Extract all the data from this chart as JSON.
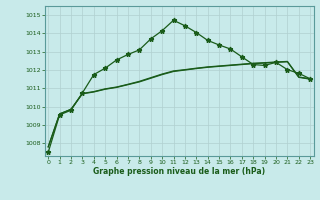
{
  "title": "Graphe pression niveau de la mer (hPa)",
  "bg_color": "#c8eaea",
  "grid_color": "#b0d0d0",
  "line_color": "#1a5c1a",
  "x_ticks": [
    0,
    1,
    2,
    3,
    4,
    5,
    6,
    7,
    8,
    9,
    10,
    11,
    12,
    13,
    14,
    15,
    16,
    17,
    18,
    19,
    20,
    21,
    22,
    23
  ],
  "y_ticks": [
    1008,
    1009,
    1010,
    1011,
    1012,
    1013,
    1014,
    1015
  ],
  "ylim": [
    1007.3,
    1015.5
  ],
  "xlim": [
    -0.3,
    23.3
  ],
  "main_y": [
    1007.5,
    1009.55,
    1009.8,
    1010.75,
    1011.75,
    1012.1,
    1012.55,
    1012.85,
    1013.1,
    1013.7,
    1014.15,
    1014.72,
    1014.42,
    1014.05,
    1013.62,
    1013.37,
    1013.15,
    1012.72,
    1012.3,
    1012.25,
    1012.42,
    1012.02,
    1011.82,
    1011.52
  ],
  "smooth1_y": [
    1007.8,
    1009.6,
    1009.85,
    1010.7,
    1010.8,
    1010.95,
    1011.05,
    1011.2,
    1011.35,
    1011.55,
    1011.75,
    1011.92,
    1012.0,
    1012.08,
    1012.15,
    1012.2,
    1012.25,
    1012.3,
    1012.35,
    1012.38,
    1012.42,
    1012.45,
    1011.6,
    1011.5
  ],
  "smooth2_y": [
    1007.8,
    1009.6,
    1009.85,
    1010.72,
    1010.82,
    1010.97,
    1011.07,
    1011.22,
    1011.38,
    1011.58,
    1011.78,
    1011.95,
    1012.02,
    1012.1,
    1012.17,
    1012.22,
    1012.27,
    1012.32,
    1012.37,
    1012.4,
    1012.44,
    1012.47,
    1011.62,
    1011.52
  ]
}
